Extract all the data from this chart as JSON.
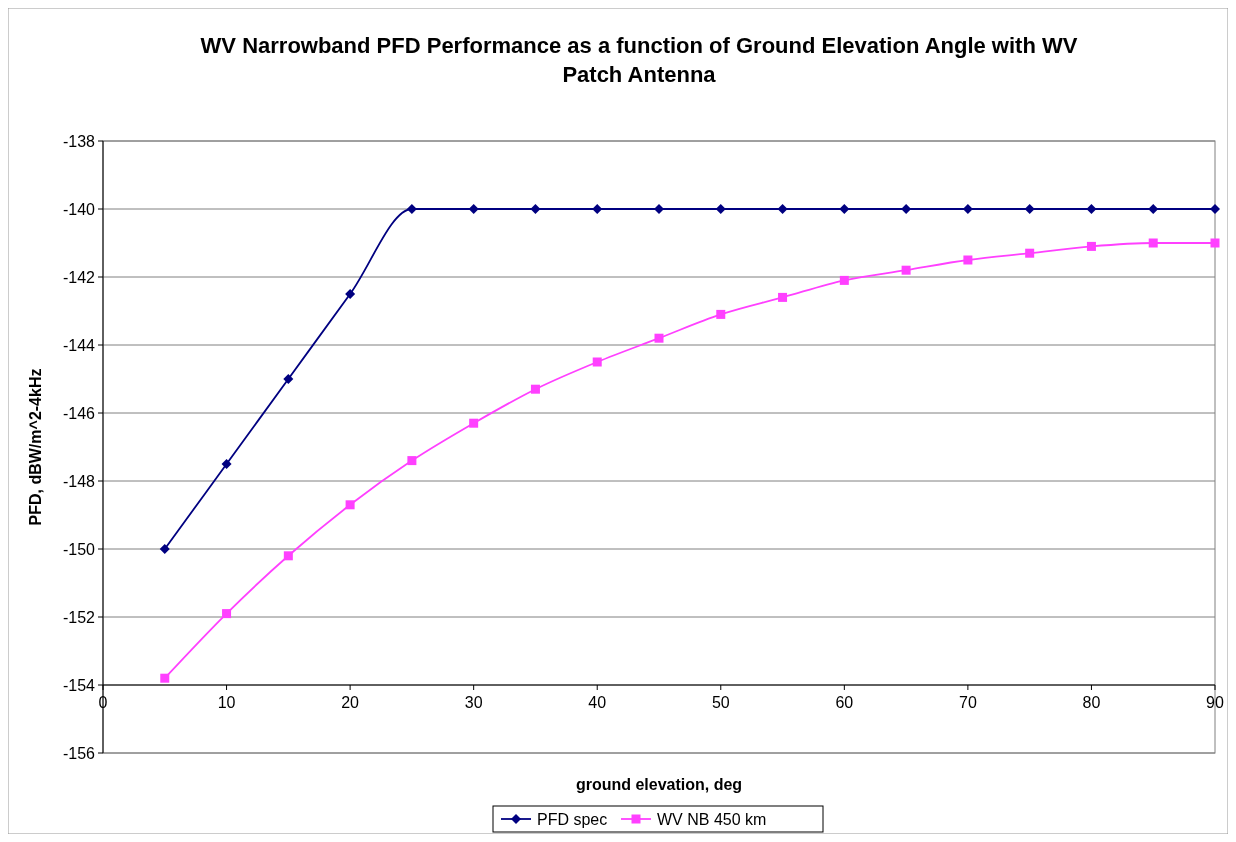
{
  "chart_data": {
    "type": "line",
    "title": "WV Narrowband PFD Performance as a function of Ground Elevation Angle with WV Patch Antenna",
    "xlabel": "ground elevation, deg",
    "ylabel": "PFD, dBW/m^2-4kHz",
    "x": [
      5,
      10,
      15,
      20,
      25,
      30,
      35,
      40,
      45,
      50,
      55,
      60,
      65,
      70,
      75,
      80,
      85,
      90
    ],
    "series": [
      {
        "name": "PFD spec",
        "color": "#000080",
        "marker": "diamond",
        "values": [
          -150,
          -147.5,
          -145,
          -142.5,
          -140,
          -140,
          -140,
          -140,
          -140,
          -140,
          -140,
          -140,
          -140,
          -140,
          -140,
          -140,
          -140,
          -140
        ]
      },
      {
        "name": "WV NB 450 km",
        "color": "#ff40ff",
        "marker": "square",
        "values": [
          -153.8,
          -151.9,
          -150.2,
          -148.7,
          -147.4,
          -146.3,
          -145.3,
          -144.5,
          -143.8,
          -143.1,
          -142.6,
          -142.1,
          -141.8,
          -141.5,
          -141.3,
          -141.1,
          -141.0,
          -141.0
        ]
      }
    ],
    "xlim": [
      0,
      90
    ],
    "xticks": [
      0,
      10,
      20,
      30,
      40,
      50,
      60,
      70,
      80,
      90
    ],
    "ylim": [
      -156,
      -138
    ],
    "yticks": [
      -156,
      -154,
      -152,
      -150,
      -148,
      -146,
      -144,
      -142,
      -140,
      -138
    ],
    "grid": "y",
    "legend": "bottom"
  }
}
